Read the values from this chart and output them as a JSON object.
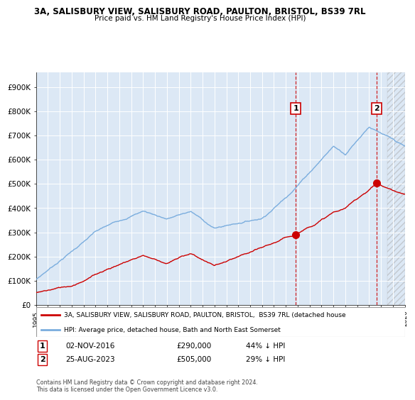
{
  "title_line1": "3A, SALISBURY VIEW, SALISBURY ROAD, PAULTON, BRISTOL, BS39 7RL",
  "title_line2": "Price paid vs. HM Land Registry's House Price Index (HPI)",
  "ytick_labels": [
    "£0",
    "£100K",
    "£200K",
    "£300K",
    "£400K",
    "£500K",
    "£600K",
    "£700K",
    "£800K",
    "£900K"
  ],
  "yticks": [
    0,
    100000,
    200000,
    300000,
    400000,
    500000,
    600000,
    700000,
    800000,
    900000
  ],
  "ylim": [
    0,
    960000
  ],
  "hpi_color": "#7aadde",
  "price_color": "#cc0000",
  "dashed_color": "#cc0000",
  "transaction1_date": "02-NOV-2016",
  "transaction1_price": 290000,
  "transaction1_pct": "44% ↓ HPI",
  "transaction1_x": 2016.83,
  "transaction2_date": "25-AUG-2023",
  "transaction2_price": 505000,
  "transaction2_pct": "29% ↓ HPI",
  "transaction2_x": 2023.64,
  "legend_line1": "3A, SALISBURY VIEW, SALISBURY ROAD, PAULTON, BRISTOL,  BS39 7RL (detached house",
  "legend_line2": "HPI: Average price, detached house, Bath and North East Somerset",
  "footnote": "Contains HM Land Registry data © Crown copyright and database right 2024.\nThis data is licensed under the Open Government Licence v3.0.",
  "xmin": 1995,
  "xmax": 2026,
  "hatch_start": 2024.5,
  "background_color": "#ffffff",
  "plot_bg_color": "#dce8f5"
}
